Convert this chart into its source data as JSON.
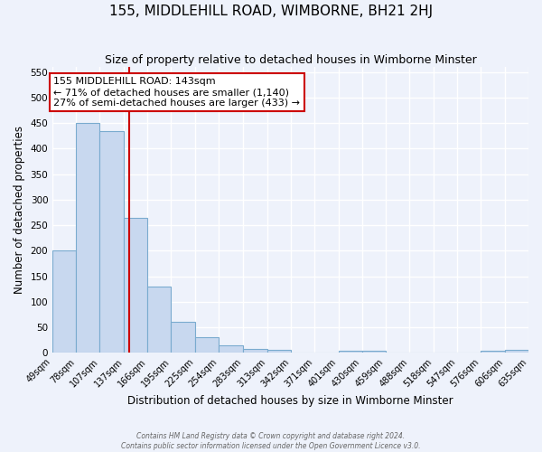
{
  "title": "155, MIDDLEHILL ROAD, WIMBORNE, BH21 2HJ",
  "subtitle": "Size of property relative to detached houses in Wimborne Minster",
  "xlabel": "Distribution of detached houses by size in Wimborne Minster",
  "ylabel": "Number of detached properties",
  "bin_edges": [
    49,
    78,
    107,
    137,
    166,
    195,
    225,
    254,
    283,
    313,
    342,
    371,
    401,
    430,
    459,
    488,
    518,
    547,
    576,
    606,
    635
  ],
  "bin_heights": [
    200,
    450,
    435,
    265,
    130,
    60,
    30,
    15,
    8,
    5,
    0,
    0,
    4,
    3,
    0,
    0,
    0,
    0,
    3,
    5
  ],
  "bar_color": "#c8d8ef",
  "bar_edge_color": "#7aabcf",
  "vline_x": 143,
  "vline_color": "#cc0000",
  "annotation_title": "155 MIDDLEHILL ROAD: 143sqm",
  "annotation_line1": "← 71% of detached houses are smaller (1,140)",
  "annotation_line2": "27% of semi-detached houses are larger (433) →",
  "annotation_box_color": "white",
  "annotation_box_edge": "#cc0000",
  "ylim": [
    0,
    560
  ],
  "yticks": [
    0,
    50,
    100,
    150,
    200,
    250,
    300,
    350,
    400,
    450,
    500,
    550
  ],
  "tick_labels": [
    "49sqm",
    "78sqm",
    "107sqm",
    "137sqm",
    "166sqm",
    "195sqm",
    "225sqm",
    "254sqm",
    "283sqm",
    "313sqm",
    "342sqm",
    "371sqm",
    "401sqm",
    "430sqm",
    "459sqm",
    "488sqm",
    "518sqm",
    "547sqm",
    "576sqm",
    "606sqm",
    "635sqm"
  ],
  "footer1": "Contains HM Land Registry data © Crown copyright and database right 2024.",
  "footer2": "Contains public sector information licensed under the Open Government Licence v3.0.",
  "bg_color": "#eef2fb",
  "grid_color": "#ffffff",
  "title_fontsize": 11,
  "subtitle_fontsize": 9,
  "axis_label_fontsize": 8.5,
  "tick_fontsize": 7,
  "annotation_fontsize": 8
}
